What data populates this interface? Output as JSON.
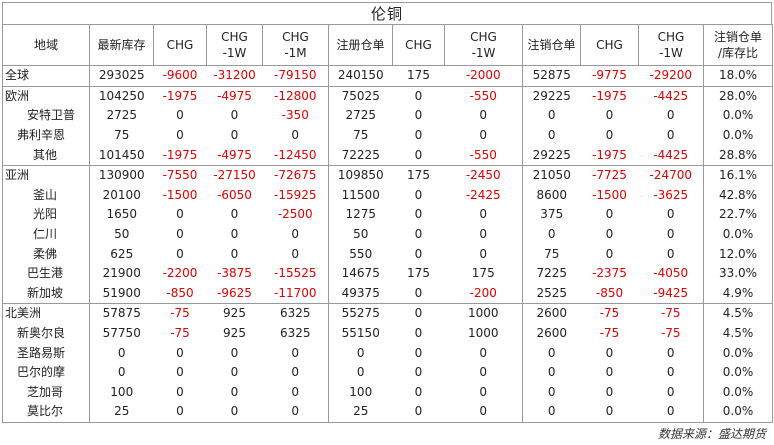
{
  "title": "伦铜",
  "headers": [
    "地域",
    "最新库存",
    "CHG",
    "CHG\n-1W",
    "CHG\n-1M",
    "注册仓单",
    "CHG",
    "CHG\n-1W",
    "注销仓单",
    "CHG",
    "CHG\n-1W",
    "注销仓单\n/库存比"
  ],
  "rows": [
    {
      "level": 0,
      "group_top": true,
      "cells": [
        "全球",
        "293025",
        "-9600",
        "-31200",
        "-79150",
        "240150",
        "175",
        "-2000",
        "52875",
        "-9775",
        "-29200",
        "18.0%"
      ]
    },
    {
      "level": 0,
      "group_top": true,
      "cells": [
        "欧洲",
        "104250",
        "-1975",
        "-4975",
        "-12800",
        "75025",
        "0",
        "-550",
        "29225",
        "-1975",
        "-4425",
        "28.0%"
      ]
    },
    {
      "level": 2,
      "group_top": false,
      "cells": [
        "安特卫普",
        "2725",
        "0",
        "0",
        "-350",
        "2725",
        "0",
        "0",
        "0",
        "0",
        "0",
        "0.0%"
      ]
    },
    {
      "level": 1,
      "group_top": false,
      "cells": [
        "弗利辛恩",
        "75",
        "0",
        "0",
        "0",
        "75",
        "0",
        "0",
        "0",
        "0",
        "0",
        "0.0%"
      ]
    },
    {
      "level": 3,
      "group_top": false,
      "cells": [
        "其他",
        "101450",
        "-1975",
        "-4975",
        "-12450",
        "72225",
        "0",
        "-550",
        "29225",
        "-1975",
        "-4425",
        "28.8%"
      ]
    },
    {
      "level": 0,
      "group_top": true,
      "cells": [
        "亚洲",
        "130900",
        "-7550",
        "-27150",
        "-72675",
        "109850",
        "175",
        "-2450",
        "21050",
        "-7725",
        "-24700",
        "16.1%"
      ]
    },
    {
      "level": 3,
      "group_top": false,
      "cells": [
        "釜山",
        "20100",
        "-1500",
        "-6050",
        "-15925",
        "11500",
        "0",
        "-2425",
        "8600",
        "-1500",
        "-3625",
        "42.8%"
      ]
    },
    {
      "level": 3,
      "group_top": false,
      "cells": [
        "光阳",
        "1650",
        "0",
        "0",
        "-2500",
        "1275",
        "0",
        "0",
        "375",
        "0",
        "0",
        "22.7%"
      ]
    },
    {
      "level": 3,
      "group_top": false,
      "cells": [
        "仁川",
        "50",
        "0",
        "0",
        "0",
        "50",
        "0",
        "0",
        "0",
        "0",
        "0",
        "0.0%"
      ]
    },
    {
      "level": 3,
      "group_top": false,
      "cells": [
        "柔佛",
        "625",
        "0",
        "0",
        "0",
        "550",
        "0",
        "0",
        "75",
        "0",
        "0",
        "12.0%"
      ]
    },
    {
      "level": 2,
      "group_top": false,
      "cells": [
        "巴生港",
        "21900",
        "-2200",
        "-3875",
        "-15525",
        "14675",
        "175",
        "175",
        "7225",
        "-2375",
        "-4050",
        "33.0%"
      ]
    },
    {
      "level": 2,
      "group_top": false,
      "cells": [
        "新加坡",
        "51900",
        "-850",
        "-9625",
        "-11700",
        "49375",
        "0",
        "-200",
        "2525",
        "-850",
        "-9425",
        "4.9%"
      ]
    },
    {
      "level": 0,
      "group_top": true,
      "cells": [
        "北美洲",
        "57875",
        "-75",
        "925",
        "6325",
        "55275",
        "0",
        "1000",
        "2600",
        "-75",
        "-75",
        "4.5%"
      ]
    },
    {
      "level": 1,
      "group_top": false,
      "cells": [
        "新奥尔良",
        "57750",
        "-75",
        "925",
        "6325",
        "55150",
        "0",
        "1000",
        "2600",
        "-75",
        "-75",
        "4.5%"
      ]
    },
    {
      "level": 1,
      "group_top": false,
      "cells": [
        "圣路易斯",
        "0",
        "0",
        "0",
        "0",
        "0",
        "0",
        "0",
        "0",
        "0",
        "0",
        "0.0%"
      ]
    },
    {
      "level": 1,
      "group_top": false,
      "cells": [
        "巴尔的摩",
        "0",
        "0",
        "0",
        "0",
        "0",
        "0",
        "0",
        "0",
        "0",
        "0",
        "0.0%"
      ]
    },
    {
      "level": 2,
      "group_top": false,
      "cells": [
        "芝加哥",
        "100",
        "0",
        "0",
        "0",
        "100",
        "0",
        "0",
        "0",
        "0",
        "0",
        "0.0%"
      ]
    },
    {
      "level": 2,
      "group_top": false,
      "cells": [
        "莫比尔",
        "25",
        "0",
        "0",
        "0",
        "25",
        "0",
        "0",
        "0",
        "0",
        "0",
        "0.0%"
      ]
    }
  ],
  "source": "数据来源：盛达期货",
  "colors": {
    "negative": "#e00000",
    "border": "#999999"
  }
}
